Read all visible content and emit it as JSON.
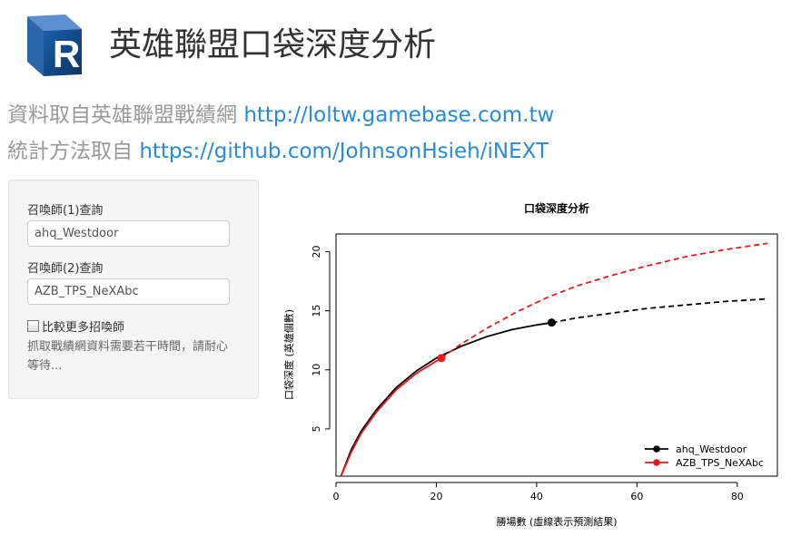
{
  "header": {
    "title": "英雄聯盟口袋深度分析",
    "source_label": "資料取自英雄聯盟戰績網",
    "source_link": "http://loltw.gamebase.com.tw",
    "method_label": "統計方法取自",
    "method_link": "https://github.com/JohnsonHsieh/iNEXT"
  },
  "form": {
    "summoner1_label": "召喚師(1)查詢",
    "summoner1_value": "ahq_Westdoor",
    "summoner2_label": "召喚師(2)查詢",
    "summoner2_value": "AZB_TPS_NeXAbc",
    "compare_more_label": "比較更多招喚師",
    "compare_more_checked": false,
    "note": "抓取戰績網資料需要若干時間，請耐心等待..."
  },
  "chart_data": {
    "type": "line",
    "title": "口袋深度分析",
    "xlabel": "勝場數 (虛線表示預測結果)",
    "ylabel": "口袋深度 (英雄個數)",
    "xlim": [
      0,
      88
    ],
    "ylim": [
      1,
      21.5
    ],
    "xticks": [
      "0",
      "20",
      "40",
      "60",
      "80"
    ],
    "yticks": [
      "5",
      "10",
      "15",
      "20"
    ],
    "legend_position": "bottom-right",
    "series": [
      {
        "name": "ahq_Westdoor",
        "color": "#000000",
        "observed": {
          "x": 43,
          "y": 14
        },
        "x": [
          1,
          3,
          5,
          8,
          12,
          16,
          20,
          25,
          30,
          35,
          40,
          43,
          48,
          55,
          62,
          70,
          78,
          86
        ],
        "y": [
          1,
          3.2,
          4.8,
          6.6,
          8.5,
          9.9,
          11.0,
          12.0,
          12.8,
          13.4,
          13.8,
          14.0,
          14.4,
          14.8,
          15.2,
          15.5,
          15.8,
          16.0
        ],
        "observed_until_x": 43
      },
      {
        "name": "AZB_TPS_NeXAbc",
        "color": "#e41a1c",
        "observed": {
          "x": 21,
          "y": 11
        },
        "x": [
          1,
          3,
          5,
          8,
          12,
          16,
          21,
          25,
          30,
          36,
          42,
          48,
          55,
          62,
          70,
          78,
          86
        ],
        "y": [
          1,
          3.0,
          4.6,
          6.4,
          8.3,
          9.7,
          11.0,
          12.2,
          13.5,
          14.9,
          16.1,
          17.1,
          18.0,
          18.8,
          19.6,
          20.2,
          20.7
        ],
        "observed_until_x": 21
      }
    ]
  }
}
